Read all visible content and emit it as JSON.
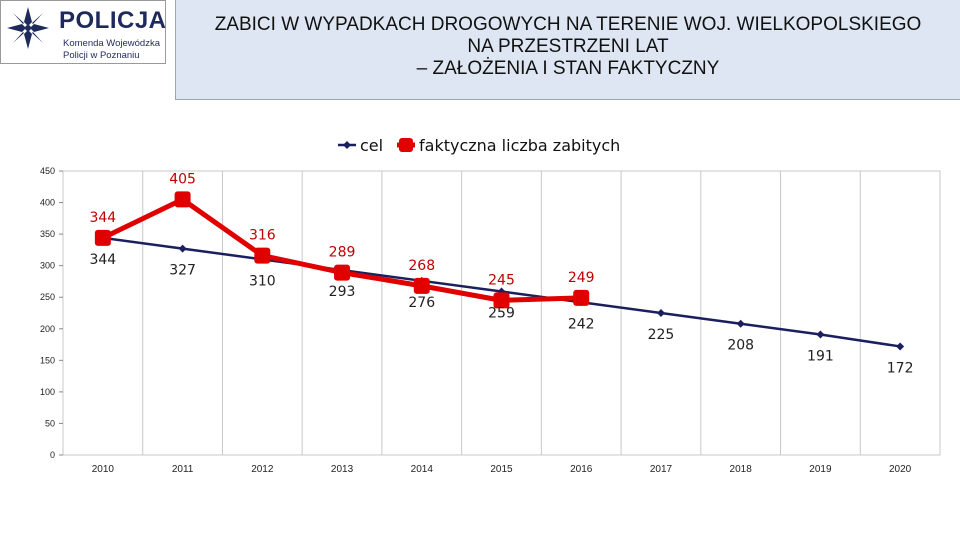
{
  "logo": {
    "name": "POLICJA",
    "sub1": "Komenda Wojewódzka",
    "sub2": "Policji w Poznaniu"
  },
  "header": {
    "line1": "ZABICI W WYPADKACH DROGOWYCH NA TERENIE WOJ. WIELKOPOLSKIEGO",
    "line2": "NA PRZESTRZENI LAT",
    "line3": "– ZAŁOŻENIA I STAN FAKTYCZNY"
  },
  "chart_data": {
    "type": "line",
    "x": [
      "2010",
      "2011",
      "2012",
      "2013",
      "2014",
      "2015",
      "2016",
      "2017",
      "2018",
      "2019",
      "2020"
    ],
    "ylim": [
      0,
      450
    ],
    "yticks": [
      0,
      50,
      100,
      150,
      200,
      250,
      300,
      350,
      400,
      450
    ],
    "grid": "vertical",
    "legend_position": "top",
    "series": [
      {
        "name": "cel",
        "color": "#1b1f5e",
        "values": [
          344,
          327,
          310,
          293,
          276,
          259,
          242,
          225,
          208,
          191,
          172
        ]
      },
      {
        "name": "faktyczna liczba zabitych",
        "color": "#e00000",
        "values": [
          344,
          405,
          316,
          289,
          268,
          245,
          249,
          null,
          null,
          null,
          null
        ]
      }
    ]
  }
}
